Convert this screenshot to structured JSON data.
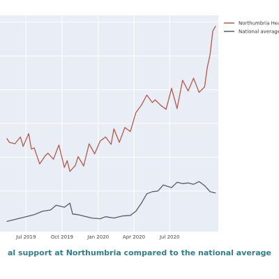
{
  "caption": "al support at Northumbria compared to the national average",
  "chart_data": {
    "type": "line",
    "x_tick_labels": [
      "Jul 2019",
      "Oct 2019",
      "Jan 2020",
      "Apr 2020",
      "Jul 2020"
    ],
    "grid": true,
    "legend_position": "top-right",
    "colors": {
      "plot_bg": "#e8edf6",
      "series1": "#b35a47",
      "series2": "#555c66"
    },
    "series": [
      {
        "name": "Northumbria Hea",
        "x": [
          "2019-05-13",
          "2019-05-20",
          "2019-06-03",
          "2019-06-17",
          "2019-06-24",
          "2019-07-08",
          "2019-07-15",
          "2019-07-22",
          "2019-08-05",
          "2019-08-19",
          "2019-08-26",
          "2019-09-09",
          "2019-09-23",
          "2019-10-07",
          "2019-10-14",
          "2019-10-21",
          "2019-11-04",
          "2019-11-11",
          "2019-11-25",
          "2019-12-09",
          "2019-12-23",
          "2020-01-06",
          "2020-01-20",
          "2020-02-03",
          "2020-02-10",
          "2020-02-24",
          "2020-03-09",
          "2020-03-23",
          "2020-04-06",
          "2020-04-20",
          "2020-05-04",
          "2020-05-18",
          "2020-05-25",
          "2020-06-08",
          "2020-06-22",
          "2020-07-06",
          "2020-07-20",
          "2020-08-03",
          "2020-08-17",
          "2020-08-31",
          "2020-09-14",
          "2020-09-28",
          "2020-10-05",
          "2020-10-12",
          "2020-10-19",
          "2020-10-26"
        ],
        "y": [
          78,
          72,
          70,
          80,
          66,
          85,
          62,
          64,
          40,
          52,
          56,
          47,
          68,
          35,
          45,
          29,
          38,
          51,
          37,
          70,
          55,
          74,
          80,
          69,
          92,
          72,
          94,
          88,
          116,
          127,
          142,
          131,
          135,
          127,
          121,
          152,
          122,
          164,
          148,
          167,
          146,
          154,
          183,
          202,
          237,
          244
        ]
      },
      {
        "name": "National average",
        "x": [
          "2019-05-13",
          "2019-06-03",
          "2019-06-17",
          "2019-07-01",
          "2019-07-22",
          "2019-08-12",
          "2019-09-02",
          "2019-09-16",
          "2019-10-07",
          "2019-10-21",
          "2019-10-28",
          "2019-11-11",
          "2019-12-02",
          "2019-12-16",
          "2020-01-06",
          "2020-01-20",
          "2020-02-10",
          "2020-03-02",
          "2020-03-23",
          "2020-04-06",
          "2020-04-20",
          "2020-05-04",
          "2020-05-18",
          "2020-06-01",
          "2020-06-15",
          "2020-07-06",
          "2020-07-20",
          "2020-08-03",
          "2020-08-17",
          "2020-08-31",
          "2020-09-14",
          "2020-09-28",
          "2020-10-12",
          "2020-10-26"
        ],
        "y": [
          -45,
          -42,
          -40,
          -38,
          -35,
          -30,
          -28,
          -21,
          -24,
          -18,
          -34,
          -35,
          -38,
          -40,
          -41,
          -38,
          -40,
          -37,
          -36,
          -30,
          -18,
          -4,
          -1,
          0,
          9,
          5,
          13,
          11,
          12,
          10,
          14,
          8,
          -1,
          -3
        ]
      }
    ]
  }
}
